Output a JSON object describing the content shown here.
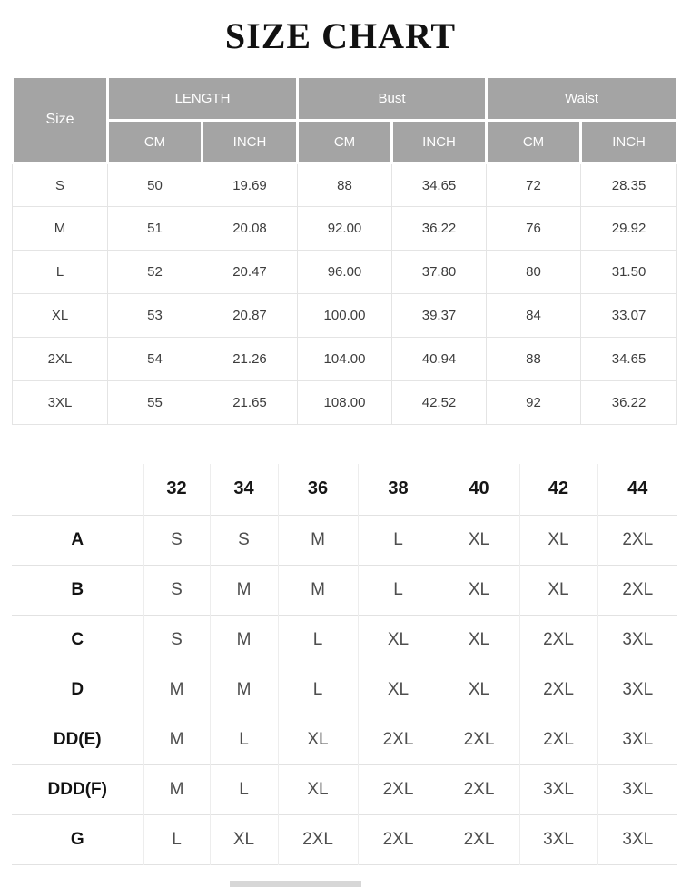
{
  "title": "SIZE CHART",
  "colors": {
    "header_bg": "#a4a4a4",
    "header_text": "#ffffff",
    "grid_line": "#e4e4e4",
    "body_text": "#3d3d3d"
  },
  "size_table": {
    "corner_label": "Size",
    "groups": [
      {
        "label": "LENGTH"
      },
      {
        "label": "Bust"
      },
      {
        "label": "Waist"
      }
    ],
    "sub_headers": [
      "CM",
      "INCH",
      "CM",
      "INCH",
      "CM",
      "INCH"
    ],
    "rows": [
      {
        "size": "S",
        "cells": [
          "50",
          "19.69",
          "88",
          "34.65",
          "72",
          "28.35"
        ]
      },
      {
        "size": "M",
        "cells": [
          "51",
          "20.08",
          "92.00",
          "36.22",
          "76",
          "29.92"
        ]
      },
      {
        "size": "L",
        "cells": [
          "52",
          "20.47",
          "96.00",
          "37.80",
          "80",
          "31.50"
        ]
      },
      {
        "size": "XL",
        "cells": [
          "53",
          "20.87",
          "100.00",
          "39.37",
          "84",
          "33.07"
        ]
      },
      {
        "size": "2XL",
        "cells": [
          "54",
          "21.26",
          "104.00",
          "40.94",
          "88",
          "34.65"
        ]
      },
      {
        "size": "3XL",
        "cells": [
          "55",
          "21.65",
          "108.00",
          "42.52",
          "92",
          "36.22"
        ]
      }
    ]
  },
  "cup_table": {
    "band_headers": [
      "32",
      "34",
      "36",
      "38",
      "40",
      "42",
      "44"
    ],
    "rows": [
      {
        "cup": "A",
        "cells": [
          "S",
          "S",
          "M",
          "L",
          "XL",
          "XL",
          "2XL"
        ]
      },
      {
        "cup": "B",
        "cells": [
          "S",
          "M",
          "M",
          "L",
          "XL",
          "XL",
          "2XL"
        ]
      },
      {
        "cup": "C",
        "cells": [
          "S",
          "M",
          "L",
          "XL",
          "XL",
          "2XL",
          "3XL"
        ]
      },
      {
        "cup": "D",
        "cells": [
          "M",
          "M",
          "L",
          "XL",
          "XL",
          "2XL",
          "3XL"
        ]
      },
      {
        "cup": "DD(E)",
        "cells": [
          "M",
          "L",
          "XL",
          "2XL",
          "2XL",
          "2XL",
          "3XL"
        ]
      },
      {
        "cup": "DDD(F)",
        "cells": [
          "M",
          "L",
          "XL",
          "2XL",
          "2XL",
          "3XL",
          "3XL"
        ]
      },
      {
        "cup": "G",
        "cells": [
          "L",
          "XL",
          "2XL",
          "2XL",
          "2XL",
          "3XL",
          "3XL"
        ]
      }
    ]
  }
}
